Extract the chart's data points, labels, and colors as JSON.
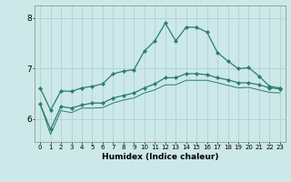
{
  "xlabel": "Humidex (Indice chaleur)",
  "x_values": [
    0,
    1,
    2,
    3,
    4,
    5,
    6,
    7,
    8,
    9,
    10,
    11,
    12,
    13,
    14,
    15,
    16,
    17,
    18,
    19,
    20,
    21,
    22,
    23
  ],
  "line1": [
    6.62,
    6.18,
    6.56,
    6.55,
    6.62,
    6.65,
    6.7,
    6.9,
    6.95,
    6.98,
    7.35,
    7.55,
    7.9,
    7.55,
    7.82,
    7.82,
    7.72,
    7.32,
    7.15,
    7.0,
    7.02,
    6.85,
    6.65,
    6.62
  ],
  "line2": [
    6.3,
    5.8,
    6.25,
    6.22,
    6.28,
    6.32,
    6.32,
    6.42,
    6.47,
    6.52,
    6.62,
    6.7,
    6.82,
    6.82,
    6.9,
    6.9,
    6.88,
    6.82,
    6.78,
    6.72,
    6.72,
    6.68,
    6.62,
    6.6
  ],
  "line3": [
    6.3,
    5.7,
    6.17,
    6.13,
    6.22,
    6.22,
    6.23,
    6.32,
    6.38,
    6.42,
    6.52,
    6.58,
    6.68,
    6.68,
    6.77,
    6.77,
    6.77,
    6.72,
    6.67,
    6.62,
    6.63,
    6.58,
    6.53,
    6.52
  ],
  "line_color": "#2a7d6e",
  "bg_color": "#cce8e8",
  "grid_color": "#aacece",
  "ytick_labels": [
    "6",
    "7",
    "8"
  ],
  "ytick_values": [
    6,
    7,
    8
  ],
  "ylim": [
    5.55,
    8.25
  ],
  "xlim": [
    -0.5,
    23.5
  ]
}
